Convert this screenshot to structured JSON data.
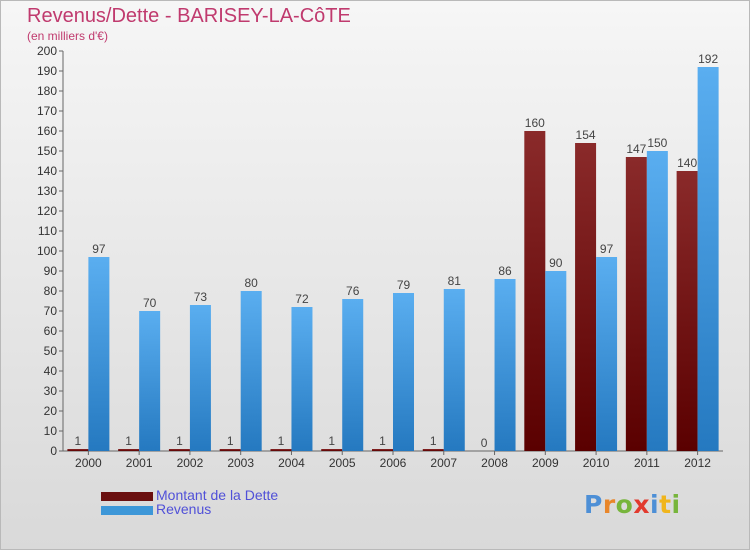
{
  "title": "Revenus/Dette - BARISEY-LA-CôTE",
  "subtitle": "(en milliers d'€)",
  "brand": {
    "text": "Proxiti",
    "letter_colors": [
      "#4d8fd6",
      "#e8862a",
      "#77b53c",
      "#e23a2e",
      "#4d8fd6",
      "#f0b51c",
      "#77b53c"
    ]
  },
  "legend": [
    {
      "label": "Montant de la Dette",
      "color": "#6a0f0f"
    },
    {
      "label": "Revenus",
      "color": "#3d97d8"
    }
  ],
  "chart_data": {
    "type": "bar",
    "title": "Revenus/Dette - BARISEY-LA-CôTE",
    "subtitle": "(en milliers d'€)",
    "categories": [
      "2000",
      "2001",
      "2002",
      "2003",
      "2004",
      "2005",
      "2006",
      "2007",
      "2008",
      "2009",
      "2010",
      "2011",
      "2012"
    ],
    "series": [
      {
        "name": "Montant de la Dette",
        "color": "#7b1515",
        "values": [
          1,
          1,
          1,
          1,
          1,
          1,
          1,
          1,
          0,
          160,
          154,
          147,
          140
        ]
      },
      {
        "name": "Revenus",
        "color": "#3d97d8",
        "values": [
          97,
          70,
          73,
          80,
          72,
          76,
          79,
          81,
          86,
          90,
          97,
          150,
          192
        ]
      }
    ],
    "ylim": [
      0,
      200
    ],
    "yticks": [
      0,
      10,
      20,
      30,
      40,
      50,
      60,
      70,
      80,
      90,
      100,
      110,
      120,
      130,
      140,
      150,
      160,
      170,
      180,
      190,
      200
    ],
    "grid": false,
    "legend_position": "bottom-left"
  }
}
